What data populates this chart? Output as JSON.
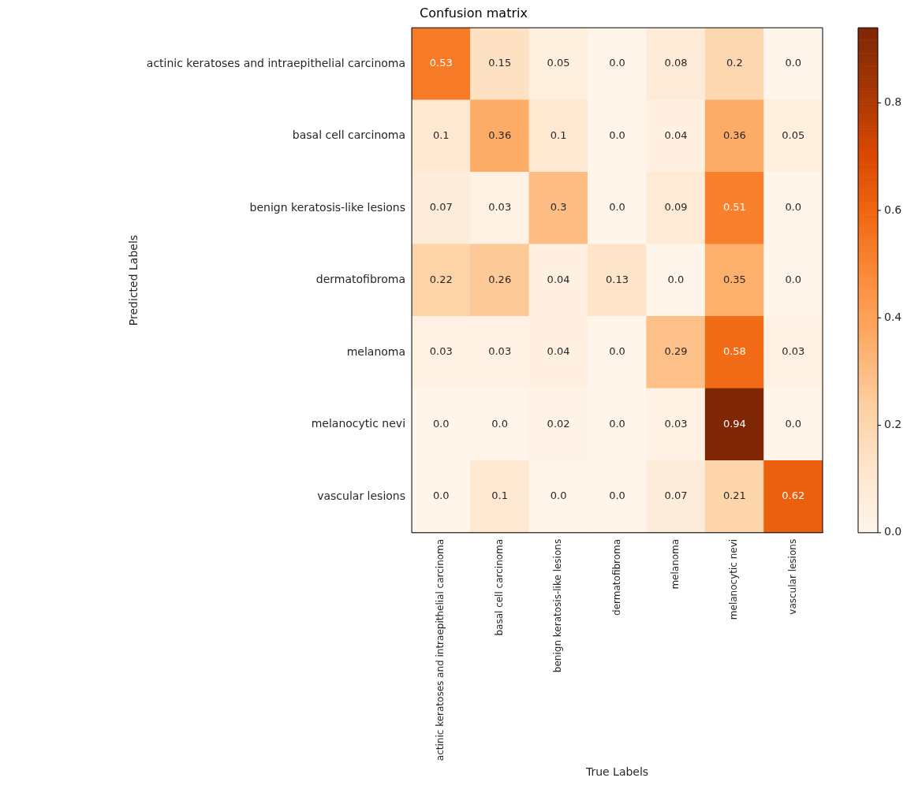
{
  "chart_data": {
    "type": "heatmap",
    "title": "Confusion matrix",
    "xlabel": "True Labels",
    "ylabel": "Predicted Labels",
    "categories": [
      "actinic keratoses and intraepithelial carcinoma",
      "basal cell carcinoma",
      "benign keratosis-like lesions",
      "dermatofibroma",
      "melanoma",
      "melanocytic nevi",
      "vascular lesions"
    ],
    "y_categories": [
      "actinic keratoses and intraepithelial carcinoma",
      "basal cell carcinoma",
      "benign keratosis-like lesions",
      "dermatofibroma",
      "melanoma",
      "melanocytic nevi",
      "vascular lesions"
    ],
    "cells": [
      [
        0.53,
        0.15,
        0.05,
        0,
        0.08,
        0.2,
        0
      ],
      [
        0.1,
        0.36,
        0.1,
        0,
        0.04,
        0.36,
        0.05
      ],
      [
        0.07,
        0.03,
        0.3,
        0,
        0.09,
        0.51,
        0
      ],
      [
        0.22,
        0.26,
        0.04,
        0.13,
        0,
        0.35,
        0
      ],
      [
        0.03,
        0.03,
        0.04,
        0,
        0.29,
        0.58,
        0.03
      ],
      [
        0,
        0,
        0.02,
        0,
        0.03,
        0.94,
        0
      ],
      [
        0,
        0.1,
        0,
        0,
        0.07,
        0.21,
        0.62
      ]
    ],
    "cell_labels": [
      [
        "0.53",
        "0.15",
        "0.05",
        "0.0",
        "0.08",
        "0.2",
        "0.0"
      ],
      [
        "0.1",
        "0.36",
        "0.1",
        "0.0",
        "0.04",
        "0.36",
        "0.05"
      ],
      [
        "0.07",
        "0.03",
        "0.3",
        "0.0",
        "0.09",
        "0.51",
        "0.0"
      ],
      [
        "0.22",
        "0.26",
        "0.04",
        "0.13",
        "0.0",
        "0.35",
        "0.0"
      ],
      [
        "0.03",
        "0.03",
        "0.04",
        "0.0",
        "0.29",
        "0.58",
        "0.03"
      ],
      [
        "0.0",
        "0.0",
        "0.02",
        "0.0",
        "0.03",
        "0.94",
        "0.0"
      ],
      [
        "0.0",
        "0.1",
        "0.0",
        "0.0",
        "0.07",
        "0.21",
        "0.62"
      ]
    ],
    "clim": [
      0,
      0.94
    ],
    "cticks": [
      {
        "value": 0,
        "label": "0.0"
      },
      {
        "value": 0.2,
        "label": "0.2"
      },
      {
        "value": 0.4,
        "label": "0.4"
      },
      {
        "value": 0.6,
        "label": "0.6"
      },
      {
        "value": 0.8,
        "label": "0.8"
      }
    ]
  }
}
